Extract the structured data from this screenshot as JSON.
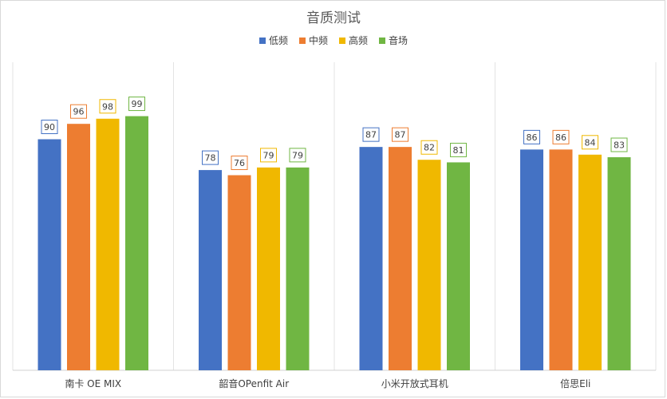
{
  "chart_data": {
    "type": "bar",
    "title": "音质测试",
    "categories": [
      "南卡 OE MIX",
      "韶音OPenfit Air",
      "小米开放式耳机",
      "倍思Eli"
    ],
    "series": [
      {
        "name": "低频",
        "color": "#4472c4",
        "values": [
          90,
          78,
          87,
          86
        ]
      },
      {
        "name": "中频",
        "color": "#ed7d31",
        "values": [
          96,
          76,
          87,
          86
        ]
      },
      {
        "name": "高频",
        "color": "#f0b800",
        "values": [
          98,
          79,
          82,
          84
        ]
      },
      {
        "name": "音场",
        "color": "#70b643",
        "values": [
          99,
          79,
          81,
          83
        ]
      }
    ],
    "ylim": [
      0,
      120
    ],
    "grid": false,
    "legend_position": "top",
    "xlabel": "",
    "ylabel": ""
  }
}
